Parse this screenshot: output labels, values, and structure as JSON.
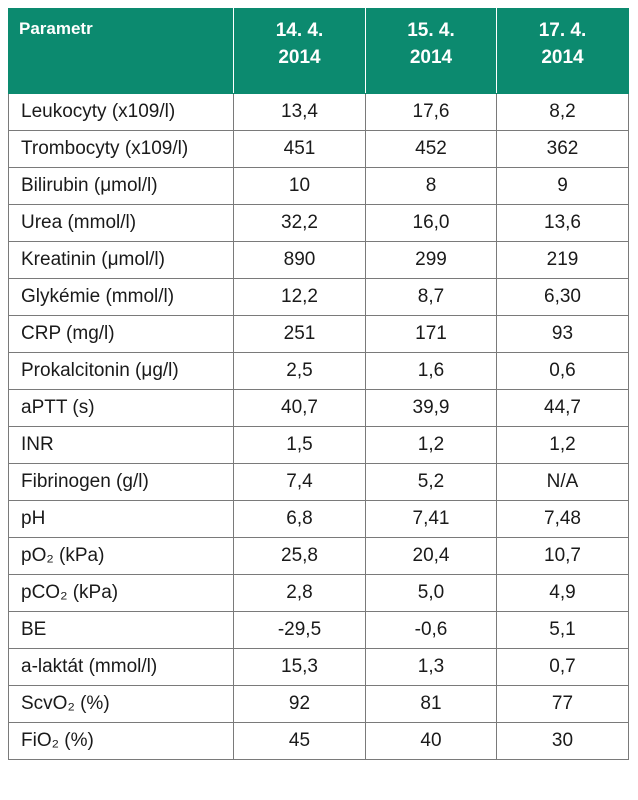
{
  "table": {
    "headers": [
      "Parametr",
      "14. 4. 2014",
      "15. 4. 2014",
      "17. 4. 2014"
    ],
    "rows": [
      {
        "label": "Leukocyty (x109/l)",
        "values": [
          "13,4",
          "17,6",
          "8,2"
        ]
      },
      {
        "label": "Trombocyty (x109/l)",
        "values": [
          "451",
          "452",
          "362"
        ]
      },
      {
        "label": "Bilirubin (μmol/l)",
        "values": [
          "10",
          "8",
          "9"
        ]
      },
      {
        "label": "Urea (mmol/l)",
        "values": [
          "32,2",
          "16,0",
          "13,6"
        ]
      },
      {
        "label": "Kreatinin (μmol/l)",
        "values": [
          "890",
          "299",
          "219"
        ]
      },
      {
        "label": "Glykémie (mmol/l)",
        "values": [
          "12,2",
          "8,7",
          "6,30"
        ]
      },
      {
        "label": "CRP (mg/l)",
        "values": [
          "251",
          "171",
          "93"
        ]
      },
      {
        "label": "Prokalcitonin (μg/l)",
        "values": [
          "2,5",
          "1,6",
          "0,6"
        ]
      },
      {
        "label": "aPTT (s)",
        "values": [
          "40,7",
          "39,9",
          "44,7"
        ]
      },
      {
        "label": "INR",
        "values": [
          "1,5",
          "1,2",
          "1,2"
        ]
      },
      {
        "label": "Fibrinogen (g/l)",
        "values": [
          "7,4",
          "5,2",
          "N/A"
        ]
      },
      {
        "label": "pH",
        "values": [
          "6,8",
          "7,41",
          "7,48"
        ]
      },
      {
        "label": "pO₂ (kPa)",
        "values": [
          "25,8",
          "20,4",
          "10,7"
        ]
      },
      {
        "label": "pCO₂ (kPa)",
        "values": [
          "2,8",
          "5,0",
          "4,9"
        ]
      },
      {
        "label": "BE",
        "values": [
          "-29,5",
          "-0,6",
          "5,1"
        ]
      },
      {
        "label": "a-laktát (mmol/l)",
        "values": [
          "15,3",
          "1,3",
          "0,7"
        ]
      },
      {
        "label": "ScvO₂ (%)",
        "values": [
          "92",
          "81",
          "77"
        ]
      },
      {
        "label": "FiO₂ (%)",
        "values": [
          "45",
          "40",
          "30"
        ]
      }
    ]
  },
  "colors": {
    "header_bg": "#0c8a6f",
    "header_text": "#ffffff",
    "border": "#7a7a7a"
  }
}
